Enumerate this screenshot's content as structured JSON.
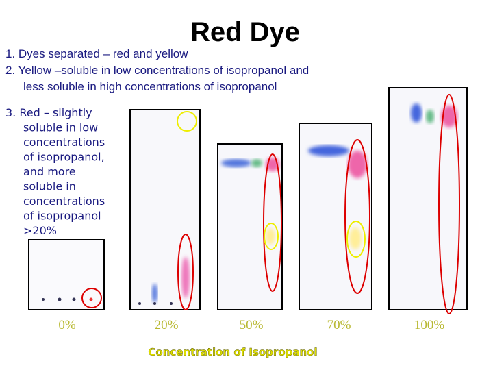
{
  "header": {
    "title": "Red Dye"
  },
  "points": [
    {
      "lines": [
        "1. Dyes separated – red and yellow"
      ]
    },
    {
      "lines": [
        "2. Yellow –soluble in low concentrations of isopropanol and",
        "less soluble in high concentrations of isopropanol"
      ]
    },
    {
      "lines": [
        "3. Red – slightly",
        "soluble in low",
        "concentrations",
        "of isopropanol,",
        "and more",
        "soluble in",
        "concentrations",
        "of isopropanol",
        ">20%"
      ]
    }
  ],
  "panels": [
    {
      "label": "0%"
    },
    {
      "label": "20%"
    },
    {
      "label": "50%"
    },
    {
      "label": "70%"
    },
    {
      "label": "100%"
    }
  ],
  "axis": {
    "label": "Concentration of Isopropanol"
  }
}
